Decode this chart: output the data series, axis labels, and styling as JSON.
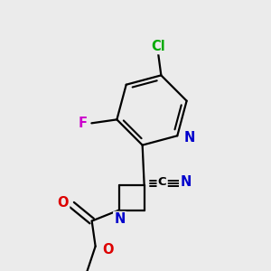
{
  "background_color": "#ebebeb",
  "atom_colors": {
    "C": "#000000",
    "N": "#0000cc",
    "O": "#dd0000",
    "F": "#cc00cc",
    "Cl": "#00aa00"
  },
  "figsize": [
    3.0,
    3.0
  ],
  "dpi": 100
}
